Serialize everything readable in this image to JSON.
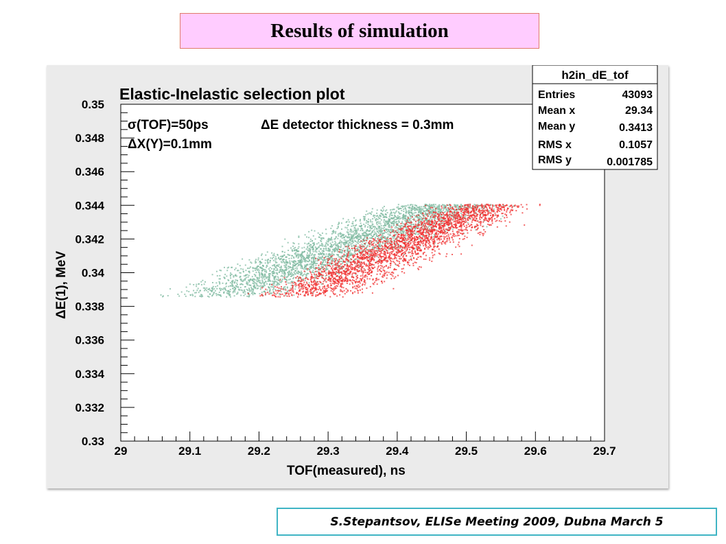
{
  "slide": {
    "title": "Results of simulation",
    "footer": "S.Stepantsov, ELISe Meeting 2009, Dubna March 5"
  },
  "chart_data": {
    "type": "scatter",
    "title": "Elastic-Inelastic selection plot",
    "xlabel": "TOF(measured), ns",
    "ylabel": "ΔE(1), MeV",
    "xlim": [
      29.0,
      29.7
    ],
    "ylim": [
      0.33,
      0.35
    ],
    "x_ticks": [
      "29",
      "29.1",
      "29.2",
      "29.3",
      "29.4",
      "29.5",
      "29.6",
      "29.7"
    ],
    "y_ticks": [
      "0.33",
      "0.332",
      "0.334",
      "0.336",
      "0.338",
      "0.34",
      "0.342",
      "0.344",
      "0.346",
      "0.348",
      "0.35"
    ],
    "grid": false,
    "annotations": [
      {
        "text": "σ(TOF)=50ps",
        "x": 29.02,
        "y": 0.3491
      },
      {
        "text": "ΔE detector thickness = 0.3mm",
        "x": 29.18,
        "y": 0.3491
      },
      {
        "text": "ΔX(Y)=0.1mm",
        "x": 29.02,
        "y": 0.348
      }
    ],
    "stats_box": {
      "name": "h2in_dE_tof",
      "rows": [
        {
          "label": "Entries",
          "value": "43093"
        },
        {
          "label": "Mean x",
          "value": "29.34"
        },
        {
          "label": "Mean y",
          "value": "0.3413"
        },
        {
          "label": "RMS x",
          "value": "0.1057"
        },
        {
          "label": "RMS y",
          "value": "0.001785"
        }
      ]
    },
    "series": [
      {
        "color": "#7fb9a0",
        "band": {
          "y_min": 0.3386,
          "y_max": 0.3441,
          "x_left_at_ymin": 29.02,
          "x_left_at_ymax": 29.35,
          "width": 0.25
        },
        "density": 3000
      },
      {
        "color": "#f03030",
        "band": {
          "y_min": 0.3386,
          "y_max": 0.3441,
          "x_left_at_ymin": 29.16,
          "x_left_at_ymax": 29.43,
          "width": 0.2
        },
        "density": 2600
      }
    ]
  }
}
